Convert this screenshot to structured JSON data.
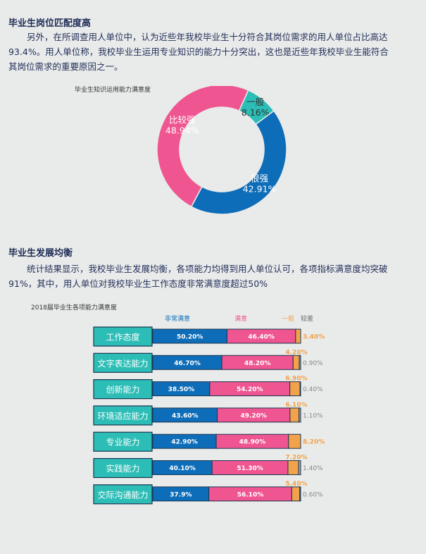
{
  "section1": {
    "title": "毕业生岗位匹配度高",
    "paragraph_lines": [
      "另外，在所调查用人单位中，认为近些年我校毕业生十分符合其岗位需求的用人单位占比高达",
      "93.4%。用人单位称，我校毕业生运用专业知识的能力十分突出，这也是近些年我校毕业生能符合",
      "其岗位需求的重要原因之一。"
    ]
  },
  "section2": {
    "title": "毕业生发展均衡",
    "paragraph_lines": [
      "统计结果显示，我校毕业生发展均衡，各项能力均得到用人单位认可，各项指标满意度均突破",
      "91%，其中，用人单位对我校毕业生工作态度非常满意度超过50%"
    ]
  },
  "chart_data": [
    {
      "type": "pie",
      "style": "donut",
      "title": "毕业生知识运用能力满意度",
      "slices": [
        {
          "label": "比较强",
          "value": 48.94,
          "value_label": "48.94%",
          "color": "#ef5590"
        },
        {
          "label": "一般",
          "value": 8.16,
          "value_label": "8.16%",
          "color": "#2bbdb6"
        },
        {
          "label": "很强",
          "value": 42.91,
          "value_label": "42.91%",
          "color": "#0e6db8"
        }
      ]
    },
    {
      "type": "bar",
      "orientation": "horizontal",
      "stacked": true,
      "title": "2018届毕业生各项能力满意度",
      "categories": [
        "工作态度",
        "文字表达能力",
        "创新能力",
        "环境适应能力",
        "专业能力",
        "实践能力",
        "交际沟通能力"
      ],
      "series": [
        {
          "name": "非常满意",
          "color": "#0e6db8",
          "values": [
            50.2,
            46.7,
            38.5,
            43.6,
            42.9,
            40.1,
            37.9
          ],
          "labels": [
            "50.20%",
            "46.70%",
            "38.50%",
            "43.60%",
            "42.90%",
            "40.10%",
            "37.9%"
          ]
        },
        {
          "name": "满意",
          "color": "#ef5590",
          "values": [
            46.4,
            48.2,
            54.2,
            49.2,
            48.9,
            51.3,
            56.1
          ],
          "labels": [
            "46.40%",
            "48.20%",
            "54.20%",
            "49.20%",
            "48.90%",
            "51.30%",
            "56.10%"
          ]
        },
        {
          "name": "一般",
          "color": "#f2a24a",
          "values": [
            3.4,
            4.2,
            6.9,
            6.1,
            8.2,
            7.2,
            5.4
          ],
          "labels": [
            "3.40%",
            "4.20%",
            "6.90%",
            "6.10%",
            "8.20%",
            "7.20%",
            "5.40%"
          ]
        },
        {
          "name": "较差",
          "color": "#a7a9ac",
          "values": [
            0,
            0.9,
            0.4,
            1.1,
            0,
            1.4,
            0.6
          ],
          "labels": [
            "",
            "0.90%",
            "0.40%",
            "1.10%",
            "",
            "1.40%",
            "0.60%"
          ]
        }
      ]
    }
  ]
}
